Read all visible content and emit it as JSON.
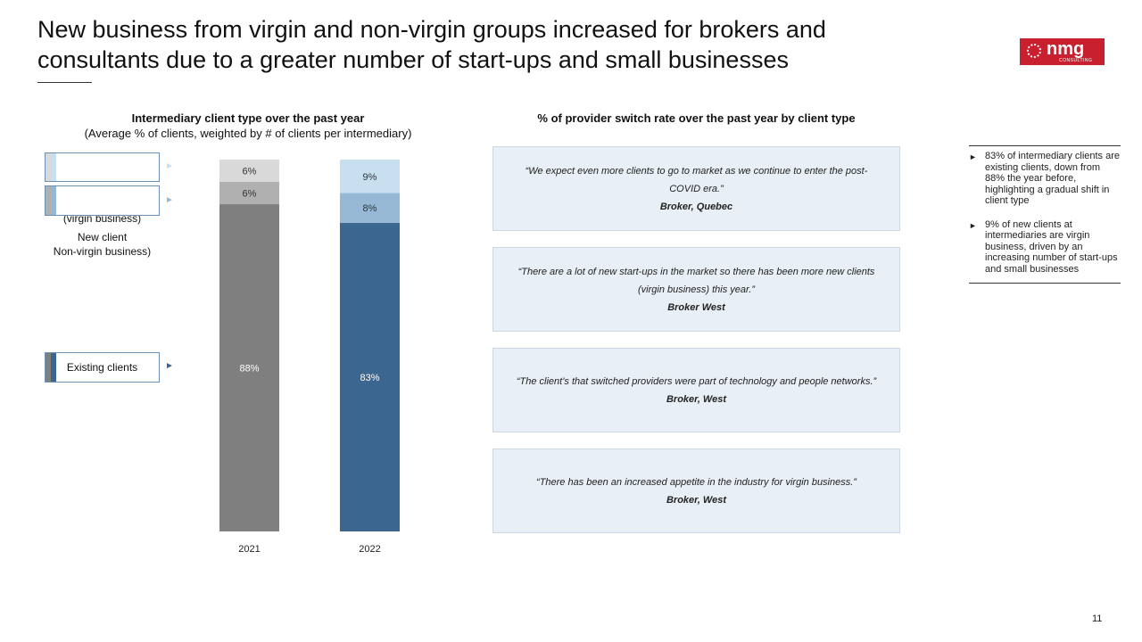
{
  "page_title": "New business from virgin and non-virgin groups increased for brokers and consultants due to a greater number of start-ups and small businesses",
  "logo": {
    "name": "nmg",
    "sub": "CONSULTING"
  },
  "left_section": {
    "title": "Intermediary client type over the past year",
    "subtitle": "(Average % of clients, weighted by # of clients per intermediary)"
  },
  "right_section": {
    "title": "% of provider switch rate over the past year by client type"
  },
  "legend": {
    "virgin": "New client\n(virgin business)",
    "non_virgin": "New client\nNon-virgin business)",
    "existing": "Existing clients"
  },
  "chart_data": {
    "type": "bar",
    "stacked": true,
    "categories": [
      "2021",
      "2022"
    ],
    "series": [
      {
        "name": "Existing clients",
        "values": [
          88,
          83
        ],
        "labels": [
          "88%",
          "83%"
        ],
        "colors": [
          "#7f7f7f",
          "#3a6690"
        ],
        "label_colors": [
          "#ffffff",
          "#ffffff"
        ]
      },
      {
        "name": "New client Non-virgin business)",
        "values": [
          6,
          8
        ],
        "labels": [
          "6%",
          "8%"
        ],
        "colors": [
          "#b0b0b0",
          "#96b8d4"
        ],
        "label_colors": [
          "#333333",
          "#333333"
        ]
      },
      {
        "name": "New client (virgin business)",
        "values": [
          6,
          9
        ],
        "labels": [
          "6%",
          "9%"
        ],
        "colors": [
          "#d9d9d9",
          "#c8dff0"
        ],
        "label_colors": [
          "#333333",
          "#333333"
        ]
      }
    ],
    "ylim": [
      0,
      100
    ]
  },
  "quotes": [
    {
      "text": "“We expect even more clients to go to market as we continue to enter the post-COVID era.”",
      "source": "Broker, Quebec"
    },
    {
      "text": "“There are a lot of new start-ups in the market so there has been more new clients (virgin business) this year.”",
      "source": "Broker West"
    },
    {
      "text": "“The client’s that switched providers were part of technology and people networks.”",
      "inline_source": "Broker, West"
    },
    {
      "text": "“There has been an increased appetite in the industry for virgin business.”",
      "source": "Broker, West"
    }
  ],
  "insights": [
    "83% of intermediary clients are existing clients, down from 88% the year before, highlighting a gradual shift in client type",
    "9% of new clients at intermediaries are virgin business, driven by an increasing number of start-ups and small businesses"
  ],
  "page_number": "11"
}
